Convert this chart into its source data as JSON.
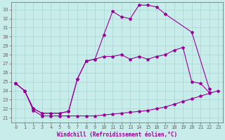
{
  "xlabel": "Windchill (Refroidissement éolien,°C)",
  "bg_color": "#c8ecea",
  "grid_color": "#a8d4d2",
  "line_color": "#990099",
  "xlim": [
    -0.5,
    23.5
  ],
  "ylim": [
    20.5,
    33.8
  ],
  "yticks": [
    21,
    22,
    23,
    24,
    25,
    26,
    27,
    28,
    29,
    30,
    31,
    32,
    33
  ],
  "xticks": [
    0,
    1,
    2,
    3,
    4,
    5,
    6,
    7,
    8,
    9,
    10,
    11,
    12,
    13,
    14,
    15,
    16,
    17,
    18,
    19,
    20,
    21,
    22,
    23
  ],
  "s1_x": [
    0,
    1,
    2,
    3,
    4,
    5,
    6,
    7,
    8,
    9,
    10,
    11,
    12,
    13,
    14,
    15,
    16,
    17,
    18,
    19,
    20,
    21,
    22,
    23
  ],
  "s1_y": [
    24.8,
    24.0,
    21.8,
    21.2,
    21.2,
    21.2,
    21.2,
    21.2,
    21.2,
    21.2,
    21.3,
    21.4,
    21.5,
    21.6,
    21.7,
    21.8,
    22.0,
    22.2,
    22.5,
    22.8,
    23.1,
    23.4,
    23.7,
    24.0
  ],
  "s2_x": [
    0,
    1,
    2,
    3,
    4,
    5,
    6,
    7,
    8,
    9,
    10,
    11,
    12,
    13,
    14,
    15,
    16,
    17,
    18,
    19,
    20,
    21,
    22
  ],
  "s2_y": [
    24.8,
    24.0,
    22.0,
    21.5,
    21.5,
    21.5,
    21.7,
    25.3,
    27.3,
    27.5,
    27.8,
    27.8,
    28.0,
    27.5,
    27.8,
    27.5,
    27.8,
    28.0,
    28.5,
    28.8,
    25.0,
    24.8,
    23.8
  ],
  "s3_x": [
    0,
    1,
    2,
    3,
    4,
    5,
    6,
    7,
    8,
    9,
    10,
    11,
    12,
    13,
    14,
    15,
    16,
    17,
    20,
    22
  ],
  "s3_y": [
    24.8,
    24.0,
    22.0,
    21.5,
    21.5,
    21.5,
    21.7,
    25.3,
    27.3,
    27.5,
    30.2,
    32.8,
    32.2,
    32.0,
    33.5,
    33.5,
    33.3,
    32.5,
    30.5,
    24.2
  ]
}
